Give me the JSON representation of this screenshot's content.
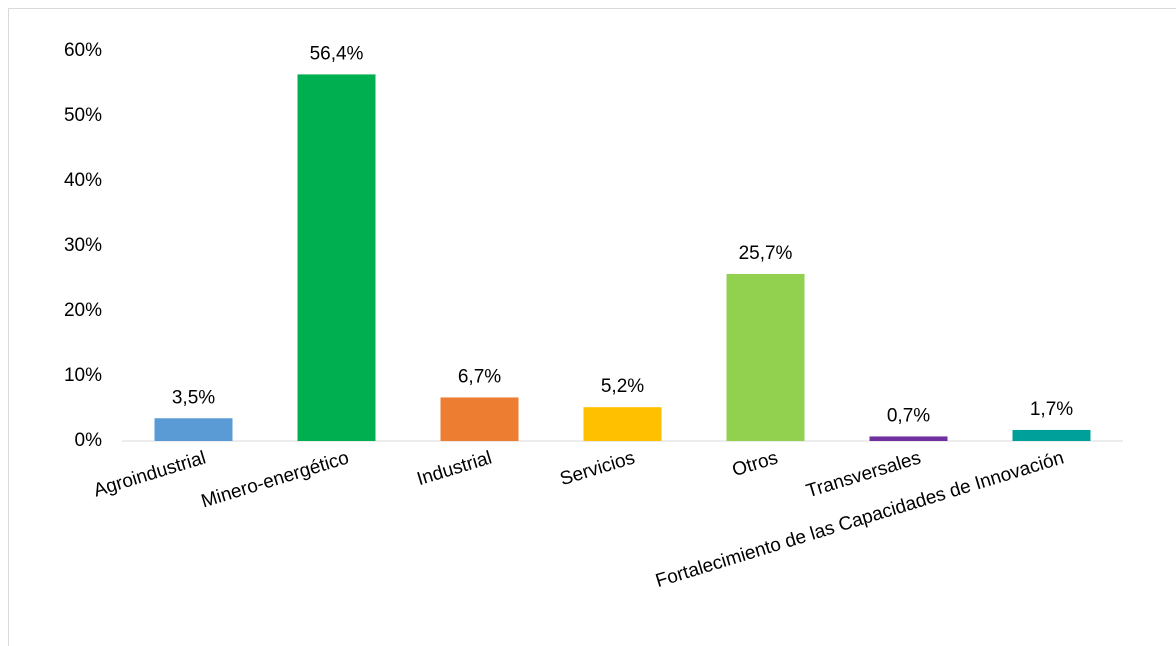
{
  "chart_data": {
    "type": "bar",
    "categories": [
      "Agroindustrial",
      "Minero-energético",
      "Industrial",
      "Servicios",
      "Otros",
      "Transversales",
      "Fortalecimiento de las Capacidades de Innovación"
    ],
    "values": [
      3.5,
      56.4,
      6.7,
      5.2,
      25.7,
      0.7,
      1.7
    ],
    "value_labels": [
      "3,5%",
      "56,4%",
      "6,7%",
      "5,2%",
      "25,7%",
      "0,7%",
      "1,7%"
    ],
    "colors": [
      "#5b9bd5",
      "#00b050",
      "#ed7d31",
      "#ffc000",
      "#92d050",
      "#7030a0",
      "#00a09a"
    ],
    "ylim": [
      0,
      60
    ],
    "yticks": [
      {
        "value": 0,
        "label": "0%"
      },
      {
        "value": 10,
        "label": "10%"
      },
      {
        "value": 20,
        "label": "20%"
      },
      {
        "value": 30,
        "label": "30%"
      },
      {
        "value": 40,
        "label": "40%"
      },
      {
        "value": 50,
        "label": "50%"
      },
      {
        "value": 60,
        "label": "60%"
      }
    ],
    "grid": false
  }
}
